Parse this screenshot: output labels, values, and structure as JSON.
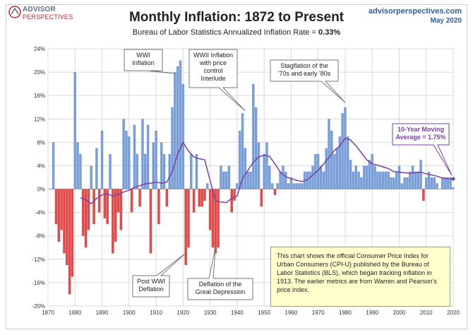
{
  "header": {
    "logo_line1": "ADVISOR",
    "logo_line2": "PERSPECTIVES",
    "title": "Monthly Inflation: 1872 to Present",
    "subtitle_prefix": "Bureau of Labor Statistics Annualized Inflation Rate = ",
    "subtitle_value": "0.33%",
    "site": "advisorperspectives.com",
    "date": "May 2020"
  },
  "annotations": {
    "wwi": [
      "WWI",
      "Inflation"
    ],
    "wwii": [
      "WWII Inflation",
      "with price",
      "control",
      "Interlude"
    ],
    "stagflation": [
      "Stagflation of the",
      "'70s and early '80s"
    ],
    "post_wwi": [
      "Post WWI",
      "Deflation"
    ],
    "depression": [
      "Deflation of the",
      "Great Depression"
    ],
    "moving_avg": [
      "10-Year Moving",
      "Average = 1.75%"
    ]
  },
  "infobox": "This chart shows the official Consumer Price Index for Urban Consumers (CPI-U) published by the Bureau of Labor Statistics (BLS), which began tracking inflation in 1913.  The earlier metrics are from Warren and Pearson's  price index.",
  "colors": {
    "positive": "#7a9ed6",
    "negative": "#e04a4a",
    "moving_average": "#7a3fa8",
    "grid": "#d9d9d9"
  },
  "chart_data": {
    "type": "area",
    "title": "Monthly Inflation: 1872 to Present",
    "xlim": [
      1870,
      2020
    ],
    "ylim": [
      -20,
      24
    ],
    "x_ticks": [
      1870,
      1880,
      1890,
      1900,
      1910,
      1920,
      1930,
      1940,
      1950,
      1960,
      1970,
      1980,
      1990,
      2000,
      2010,
      2020
    ],
    "y_ticks": [
      "24%",
      "20%",
      "16%",
      "12%",
      "8%",
      "4%",
      "0%",
      "-4%",
      "-8%",
      "-12%",
      "-16%",
      "-20%"
    ],
    "y_tick_values": [
      24,
      20,
      16,
      12,
      8,
      4,
      0,
      -4,
      -8,
      -12,
      -16,
      -20
    ],
    "grid": true,
    "series": [
      {
        "name": "Monthly Inflation",
        "x": [
          1872,
          1873,
          1874,
          1875,
          1876,
          1877,
          1878,
          1879,
          1880,
          1881,
          1882,
          1883,
          1884,
          1885,
          1886,
          1887,
          1888,
          1889,
          1890,
          1891,
          1892,
          1893,
          1894,
          1895,
          1896,
          1897,
          1898,
          1899,
          1900,
          1901,
          1902,
          1903,
          1904,
          1905,
          1906,
          1907,
          1908,
          1909,
          1910,
          1911,
          1912,
          1913,
          1914,
          1915,
          1916,
          1917,
          1918,
          1919,
          1920,
          1921,
          1922,
          1923,
          1924,
          1925,
          1926,
          1927,
          1928,
          1929,
          1930,
          1931,
          1932,
          1933,
          1934,
          1935,
          1936,
          1937,
          1938,
          1939,
          1940,
          1941,
          1942,
          1943,
          1944,
          1945,
          1946,
          1947,
          1948,
          1949,
          1950,
          1951,
          1952,
          1953,
          1954,
          1955,
          1956,
          1957,
          1958,
          1959,
          1960,
          1961,
          1962,
          1963,
          1964,
          1965,
          1966,
          1967,
          1968,
          1969,
          1970,
          1971,
          1972,
          1973,
          1974,
          1975,
          1976,
          1977,
          1978,
          1979,
          1980,
          1981,
          1982,
          1983,
          1984,
          1985,
          1986,
          1987,
          1988,
          1989,
          1990,
          1991,
          1992,
          1993,
          1994,
          1995,
          1996,
          1997,
          1998,
          1999,
          2000,
          2001,
          2002,
          2003,
          2004,
          2005,
          2006,
          2007,
          2008,
          2009,
          2010,
          2011,
          2012,
          2013,
          2014,
          2015,
          2016,
          2017,
          2018,
          2019,
          2020
        ],
        "values": [
          8,
          -6,
          -9,
          -7,
          -11,
          -13,
          -18,
          -15,
          20,
          8,
          6,
          -8,
          -10,
          -7,
          4,
          -6,
          7,
          -4,
          10,
          -5,
          -6,
          6,
          -11,
          -9,
          -4,
          -7,
          12,
          10,
          9,
          -4,
          11,
          6,
          -3,
          12,
          6,
          11,
          -11,
          8,
          10,
          -6,
          8,
          6,
          -3,
          6,
          14,
          20,
          21,
          22,
          18,
          -13,
          -10,
          6,
          -4,
          6,
          -3,
          -3,
          -2,
          1,
          -7,
          -10,
          -11,
          -10,
          4,
          3,
          3,
          4,
          -4,
          -2,
          1,
          10,
          13,
          7,
          3,
          3,
          18,
          14,
          8,
          -3,
          6,
          8,
          4,
          1,
          -1,
          1,
          3,
          4,
          3,
          1,
          2,
          1,
          1,
          1,
          1,
          3,
          3,
          3,
          4,
          6,
          6,
          4,
          3,
          7,
          12,
          10,
          6,
          7,
          9,
          13,
          14,
          9,
          5,
          3,
          4,
          3,
          2,
          4,
          4,
          5,
          6,
          4,
          3,
          3,
          3,
          3,
          3,
          2,
          2,
          3,
          4,
          1,
          2,
          2,
          3,
          4,
          3,
          3,
          5,
          -2,
          2,
          3,
          2,
          2,
          1,
          0,
          2,
          2,
          2,
          2,
          0.3
        ]
      },
      {
        "name": "10-Year Moving Average",
        "x": [
          1882,
          1884,
          1886,
          1888,
          1890,
          1892,
          1894,
          1896,
          1898,
          1900,
          1902,
          1904,
          1906,
          1908,
          1910,
          1912,
          1914,
          1916,
          1918,
          1920,
          1922,
          1924,
          1926,
          1928,
          1930,
          1932,
          1934,
          1936,
          1938,
          1940,
          1942,
          1944,
          1946,
          1948,
          1950,
          1952,
          1954,
          1956,
          1958,
          1960,
          1962,
          1964,
          1966,
          1968,
          1970,
          1972,
          1974,
          1976,
          1978,
          1980,
          1982,
          1984,
          1986,
          1988,
          1990,
          1992,
          1994,
          1996,
          1998,
          2000,
          2002,
          2004,
          2006,
          2008,
          2010,
          2012,
          2014,
          2016,
          2018,
          2020
        ],
        "values": [
          -1.5,
          -1.8,
          -2.5,
          -1.6,
          -1.0,
          -0.8,
          -1.2,
          -0.9,
          -0.5,
          -0.2,
          0.3,
          0.6,
          0.9,
          1.0,
          1.2,
          1.0,
          1.2,
          3.0,
          6.0,
          8.0,
          6.5,
          5.5,
          5.2,
          5.0,
          1.5,
          -2.0,
          -2.2,
          -2.3,
          -1.6,
          -1.2,
          1.8,
          3.2,
          4.6,
          5.5,
          5.8,
          5.6,
          4.3,
          2.9,
          2.1,
          1.8,
          1.5,
          1.3,
          1.6,
          2.4,
          3.2,
          4.3,
          5.4,
          6.6,
          7.4,
          8.7,
          8.4,
          7.4,
          6.2,
          5.0,
          4.3,
          4.1,
          3.8,
          3.5,
          3.0,
          2.9,
          2.8,
          2.7,
          2.8,
          2.9,
          2.6,
          2.4,
          2.2,
          1.9,
          1.8,
          1.75
        ]
      }
    ]
  }
}
